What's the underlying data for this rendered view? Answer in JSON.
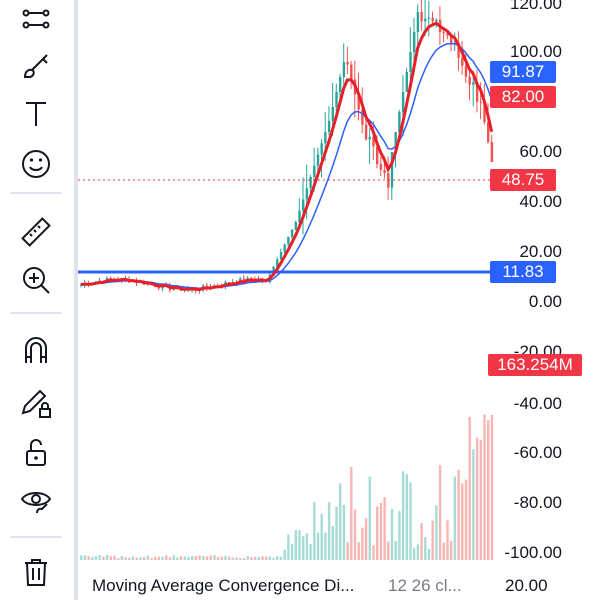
{
  "toolbar": {
    "tools": [
      {
        "name": "lines-tool-icon"
      },
      {
        "name": "brush-icon"
      },
      {
        "name": "text-icon"
      },
      {
        "name": "emoji-icon"
      },
      {
        "name": "ruler-icon"
      },
      {
        "name": "zoom-in-icon"
      },
      {
        "name": "magnet-icon"
      },
      {
        "name": "lock-drawing-icon"
      },
      {
        "name": "unlock-icon"
      },
      {
        "name": "eye-icon"
      },
      {
        "name": "trash-icon"
      }
    ]
  },
  "price_axis": {
    "labels": [
      "120.00",
      "100.00",
      "60.00",
      "40.00",
      "20.00",
      "0.00"
    ]
  },
  "price_tags": {
    "ma_blue": {
      "value": "91.87",
      "color": "#2962ff"
    },
    "ma_red": {
      "value": "82.00",
      "color": "#f23645"
    },
    "last_price": {
      "value": "48.75",
      "color": "#f23645"
    },
    "horizontal_line": {
      "value": "11.83",
      "color": "#2962ff"
    }
  },
  "volume_axis": {
    "labels": [
      "-20.00",
      "-40.00",
      "-60.00",
      "-80.00",
      "-100.00"
    ],
    "volume_tag": {
      "value": "163.254M",
      "color": "#f23645"
    }
  },
  "bottom_bar": {
    "indicator_name": "Moving Average Convergence Di...",
    "params": "12 26 cl...",
    "pane_value": "20.00"
  },
  "colors": {
    "up": "#26a69a",
    "down": "#ef5350",
    "ma_red": "#e91e2b",
    "ma_blue": "#2962ff"
  }
}
